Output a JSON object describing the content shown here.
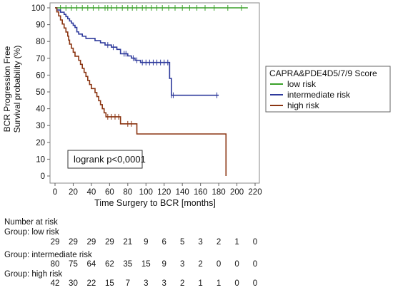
{
  "chart_data": {
    "type": "line",
    "subtype": "kaplan-meier",
    "xlabel": "Time Surgery to BCR [months]",
    "ylabel_lines": [
      "BCR Progression Free",
      "Survival probability (%)"
    ],
    "xlim": [
      0,
      220
    ],
    "ylim": [
      0,
      100
    ],
    "xticks": [
      0,
      20,
      40,
      60,
      80,
      100,
      120,
      140,
      160,
      180,
      200,
      220
    ],
    "yticks": [
      0,
      10,
      20,
      30,
      40,
      50,
      60,
      70,
      80,
      90,
      100
    ],
    "legend": {
      "title": "CAPRA&PDE4D5/7/9 Score",
      "placement": "right",
      "entries": [
        "low risk",
        "intermediate risk",
        "high risk"
      ]
    },
    "annotation": "logrank p<0,0001",
    "grid": false,
    "series": [
      {
        "name": "low risk",
        "color": "#3aa02a",
        "steps": [
          [
            0,
            100
          ],
          [
            212,
            100
          ]
        ],
        "censored": [
          6,
          12,
          18,
          24,
          30,
          36,
          42,
          48,
          55,
          58,
          62,
          68,
          74,
          80,
          85,
          90,
          96,
          100,
          106,
          112,
          118,
          125,
          132,
          140,
          148,
          156,
          165,
          175,
          190,
          205
        ]
      },
      {
        "name": "intermediate risk",
        "color": "#2e3a9c",
        "steps": [
          [
            0,
            100
          ],
          [
            2,
            98.7
          ],
          [
            6,
            97.4
          ],
          [
            10,
            96.1
          ],
          [
            12,
            94.8
          ],
          [
            14,
            93.5
          ],
          [
            16,
            92.2
          ],
          [
            18,
            90.9
          ],
          [
            20,
            89.6
          ],
          [
            22,
            88.3
          ],
          [
            24,
            85.7
          ],
          [
            26,
            84.4
          ],
          [
            30,
            83.1
          ],
          [
            34,
            81.8
          ],
          [
            44,
            80.5
          ],
          [
            50,
            79.2
          ],
          [
            55,
            77.9
          ],
          [
            62,
            76.6
          ],
          [
            68,
            75.3
          ],
          [
            72,
            72.7
          ],
          [
            80,
            71.4
          ],
          [
            84,
            70.1
          ],
          [
            88,
            68.8
          ],
          [
            94,
            67.5
          ],
          [
            126,
            58
          ],
          [
            128,
            48
          ],
          [
            180,
            48
          ]
        ],
        "censored": [
          58,
          64,
          76,
          78,
          86,
          90,
          96,
          100,
          104,
          108,
          112,
          116,
          120,
          124,
          128,
          130,
          178
        ]
      },
      {
        "name": "high risk",
        "color": "#8b3512",
        "steps": [
          [
            0,
            100
          ],
          [
            2,
            97.6
          ],
          [
            4,
            95.2
          ],
          [
            6,
            92.8
          ],
          [
            8,
            90.4
          ],
          [
            10,
            88
          ],
          [
            12,
            85.6
          ],
          [
            14,
            83.2
          ],
          [
            15,
            80.8
          ],
          [
            16,
            78.4
          ],
          [
            18,
            76
          ],
          [
            20,
            73.6
          ],
          [
            22,
            71.2
          ],
          [
            26,
            68.8
          ],
          [
            28,
            66.4
          ],
          [
            30,
            64
          ],
          [
            32,
            61.6
          ],
          [
            34,
            59.2
          ],
          [
            36,
            56.8
          ],
          [
            38,
            54.4
          ],
          [
            40,
            52
          ],
          [
            44,
            49.6
          ],
          [
            46,
            47.2
          ],
          [
            48,
            44.8
          ],
          [
            50,
            42.4
          ],
          [
            52,
            40
          ],
          [
            54,
            37.6
          ],
          [
            56,
            35.2
          ],
          [
            72,
            31
          ],
          [
            90,
            25
          ],
          [
            186,
            25
          ],
          [
            188,
            0
          ]
        ],
        "censored": [
          58,
          62,
          66,
          70,
          80,
          84
        ]
      }
    ]
  },
  "risk_table": {
    "header": "Number at risk",
    "groups": [
      {
        "label": "Group: low risk",
        "counts": [
          "29",
          "29",
          "29",
          "29",
          "21",
          "9",
          "6",
          "5",
          "3",
          "2",
          "1",
          "0"
        ]
      },
      {
        "label": "Group: intermediate risk",
        "counts": [
          "80",
          "75",
          "64",
          "62",
          "35",
          "15",
          "9",
          "3",
          "2",
          "0",
          "0",
          "0"
        ]
      },
      {
        "label": "Group: high risk",
        "counts": [
          "42",
          "30",
          "22",
          "15",
          "7",
          "3",
          "3",
          "2",
          "1",
          "1",
          "0",
          "0"
        ]
      }
    ]
  }
}
